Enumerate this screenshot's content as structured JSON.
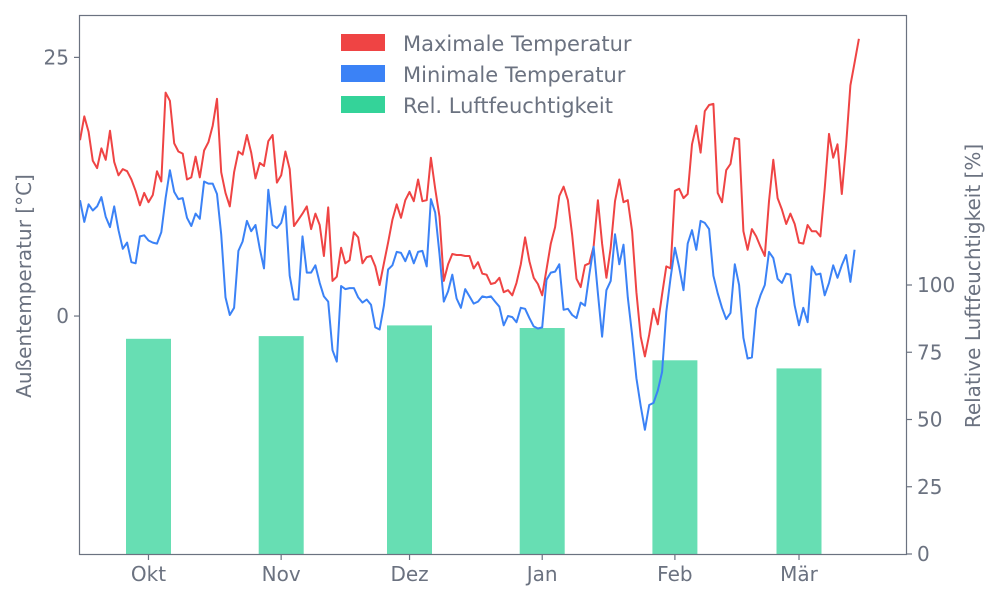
{
  "chart_data": {
    "type": "line",
    "ylabel_left": "Außentemperatur [°C]",
    "ylabel_right": "Relative Luftfeuchtigkeit [%]",
    "xlabel": "",
    "x_start": "2023-09-15",
    "x_end": "2024-03-26",
    "x_ticks": [
      {
        "date": "2023-10-01",
        "label": "Okt"
      },
      {
        "date": "2023-11-01",
        "label": "Nov"
      },
      {
        "date": "2023-12-01",
        "label": "Dez"
      },
      {
        "date": "2024-01-01",
        "label": "Jan"
      },
      {
        "date": "2024-02-01",
        "label": "Feb"
      },
      {
        "date": "2024-03-01",
        "label": "Mär"
      }
    ],
    "ylim_left": [
      -23,
      29
    ],
    "yticks_left": [
      0,
      25
    ],
    "ylim_right": [
      0,
      200
    ],
    "yticks_right": [
      0,
      25,
      50,
      75,
      100
    ],
    "grid": false,
    "legend": {
      "placement": "top-center",
      "entries": [
        "Maximale Temperatur",
        "Minimale Temperatur",
        "Rel. Luftfeuchtigkeit"
      ]
    },
    "colors": {
      "max": "#ef4444",
      "min": "#3b82f6",
      "humidity": "#34d399"
    },
    "series": [
      {
        "name": "Maximale Temperatur",
        "axis": "left",
        "values": [
          17.0,
          19.3,
          17.8,
          15.0,
          14.3,
          16.2,
          15.1,
          17.9,
          14.9,
          13.6,
          14.2,
          14.0,
          13.2,
          12.1,
          10.7,
          11.9,
          11.0,
          11.7,
          14.0,
          13.0,
          21.6,
          20.8,
          16.7,
          15.9,
          15.7,
          13.2,
          13.4,
          15.4,
          13.4,
          16.0,
          16.8,
          18.4,
          21.0,
          13.9,
          11.9,
          10.6,
          13.9,
          15.9,
          15.6,
          17.5,
          15.8,
          13.3,
          14.8,
          14.5,
          16.9,
          17.5,
          12.9,
          13.6,
          15.9,
          14.2,
          8.7,
          9.3,
          9.9,
          10.6,
          8.4,
          9.9,
          8.8,
          5.8,
          10.5,
          3.4,
          3.8,
          6.6,
          5.1,
          5.4,
          8.1,
          7.6,
          5.1,
          5.7,
          5.8,
          4.8,
          3.0,
          5.1,
          7.1,
          9.3,
          10.8,
          9.5,
          11.2,
          12.0,
          11.1,
          13.2,
          11.1,
          11.2,
          15.3,
          12.3,
          9.6,
          3.4,
          5.0,
          6.0,
          5.9,
          5.9,
          5.8,
          5.8,
          4.6,
          5.2,
          4.1,
          4.0,
          3.1,
          3.2,
          3.7,
          2.3,
          2.5,
          2.0,
          3.2,
          5.0,
          7.6,
          5.3,
          3.7,
          3.1,
          2.0,
          4.5,
          7.0,
          8.6,
          11.6,
          12.5,
          11.2,
          7.8,
          3.6,
          2.8,
          4.9,
          5.1,
          6.7,
          11.2,
          7.0,
          3.7,
          6.6,
          11.1,
          13.2,
          11.0,
          11.2,
          8.2,
          2.3,
          -2.0,
          -3.9,
          -1.8,
          0.7,
          -0.8,
          2.1,
          4.8,
          4.6,
          12.1,
          12.3,
          11.4,
          11.8,
          16.6,
          18.4,
          15.8,
          19.8,
          20.4,
          20.5,
          11.9,
          11.0,
          14.1,
          14.7,
          17.2,
          17.1,
          8.2,
          6.4,
          8.4,
          7.7,
          6.7,
          5.8,
          11.1,
          15.1,
          11.4,
          10.3,
          8.9,
          9.9,
          8.9,
          7.1,
          7.0,
          8.8,
          8.2,
          8.2,
          7.7,
          12.3,
          17.6,
          15.3,
          16.6,
          11.8,
          16.5,
          22.3,
          24.5,
          26.8
        ]
      },
      {
        "name": "Minimale Temperatur",
        "axis": "left",
        "values": [
          11.2,
          9.1,
          10.8,
          10.2,
          10.6,
          11.5,
          9.6,
          8.6,
          10.6,
          8.3,
          6.5,
          7.1,
          5.2,
          5.1,
          7.7,
          7.8,
          7.3,
          7.1,
          7.0,
          8.1,
          11.4,
          14.1,
          12.0,
          11.3,
          11.4,
          9.5,
          8.7,
          9.9,
          9.4,
          13.0,
          12.8,
          12.8,
          11.8,
          7.9,
          1.8,
          0.1,
          0.8,
          6.3,
          7.2,
          9.2,
          8.2,
          8.8,
          6.5,
          4.6,
          12.2,
          8.8,
          8.5,
          9.0,
          10.6,
          3.9,
          1.6,
          1.6,
          7.7,
          4.2,
          4.2,
          4.9,
          3.2,
          1.9,
          1.4,
          -3.3,
          -4.4,
          2.9,
          2.6,
          2.7,
          2.7,
          1.8,
          1.3,
          1.6,
          1.1,
          -1.1,
          -1.3,
          1.0,
          4.5,
          4.9,
          6.2,
          6.1,
          5.3,
          6.3,
          5.1,
          6.2,
          6.3,
          4.8,
          11.3,
          10.0,
          6.0,
          1.4,
          2.4,
          4.0,
          1.7,
          0.8,
          2.6,
          1.9,
          1.2,
          1.4,
          1.9,
          1.8,
          1.9,
          1.4,
          0.9,
          -0.9,
          0.0,
          -0.1,
          -0.6,
          0.8,
          0.7,
          -0.2,
          -1.0,
          -1.2,
          -1.1,
          3.5,
          4.2,
          4.3,
          5.0,
          0.6,
          0.7,
          0.1,
          -0.2,
          1.3,
          1.0,
          4.0,
          6.7,
          2.2,
          -2.0,
          2.5,
          3.4,
          7.9,
          5.0,
          6.9,
          1.8,
          -1.8,
          -6.0,
          -8.7,
          -11.0,
          -8.6,
          -8.4,
          -7.2,
          -5.4,
          0.4,
          3.7,
          6.6,
          4.7,
          2.5,
          7.0,
          8.3,
          6.4,
          9.2,
          9.0,
          8.4,
          3.9,
          2.2,
          0.8,
          -0.3,
          0.3,
          5.0,
          3.0,
          -2.1,
          -4.1,
          -4.0,
          0.7,
          2.0,
          3.0,
          6.2,
          5.6,
          3.6,
          3.2,
          4.1,
          4.0,
          1.0,
          -0.9,
          0.8,
          -0.6,
          4.8,
          4.0,
          4.1,
          2.0,
          3.2,
          4.9,
          3.7,
          4.9,
          5.9,
          3.3,
          6.4
        ]
      },
      {
        "name": "Rel. Luftfeuchtigkeit",
        "axis": "right",
        "type": "bar",
        "values": [
          {
            "date": "2023-10-01",
            "value": 80
          },
          {
            "date": "2023-11-01",
            "value": 81
          },
          {
            "date": "2023-12-01",
            "value": 85
          },
          {
            "date": "2024-01-01",
            "value": 84
          },
          {
            "date": "2024-02-01",
            "value": 72
          },
          {
            "date": "2024-03-01",
            "value": 69
          }
        ]
      }
    ]
  }
}
